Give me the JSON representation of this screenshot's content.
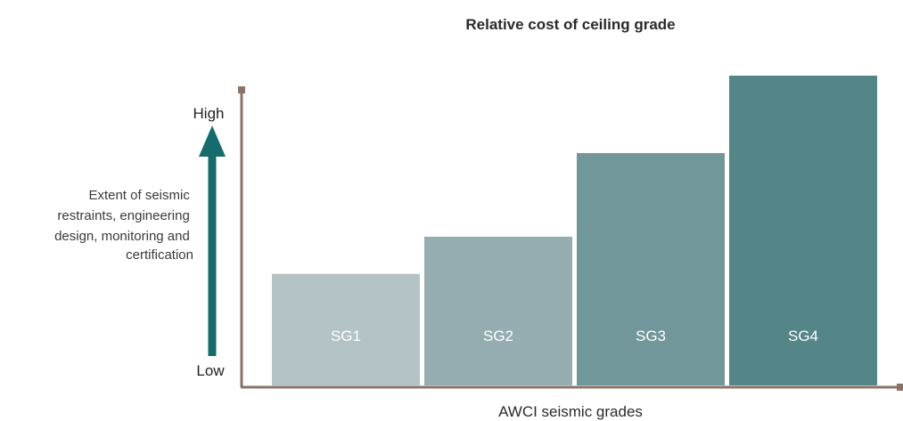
{
  "chart_data": {
    "type": "bar",
    "title": "Relative cost of ceiling grade",
    "xlabel": "AWCI seismic grades",
    "ylabel_lines": [
      "Extent of seismic",
      "restraints, engineering",
      "design, monitoring and",
      "certification"
    ],
    "y_high_label": "High",
    "y_low_label": "Low",
    "categories": [
      "SG1",
      "SG2",
      "SG3",
      "SG4"
    ],
    "values": [
      36,
      48,
      75,
      100
    ],
    "ylim": [
      0,
      100
    ],
    "grid": false,
    "legend": "none",
    "colors": {
      "bars": [
        "#b3c3c6",
        "#95adb0",
        "#72979b",
        "#548587"
      ],
      "arrow": "#146c6c",
      "axis": "#8a7468"
    }
  }
}
